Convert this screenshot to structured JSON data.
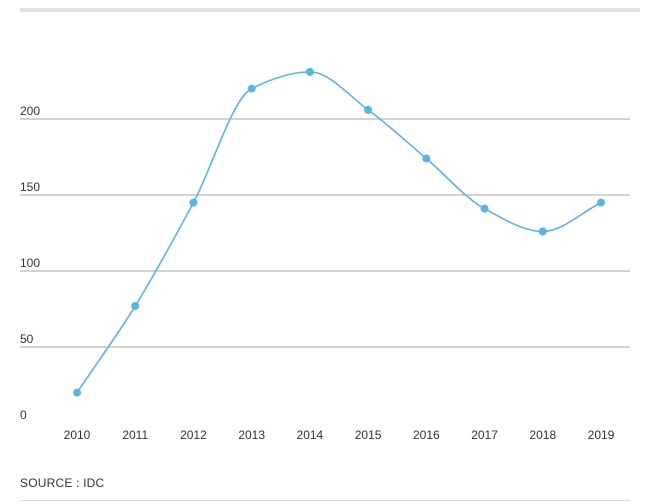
{
  "chart_data": {
    "type": "line",
    "x": [
      "2010",
      "2011",
      "2012",
      "2013",
      "2014",
      "2015",
      "2016",
      "2017",
      "2018",
      "2019"
    ],
    "series": [
      {
        "values": [
          20,
          77,
          145,
          220,
          231,
          206,
          174,
          141,
          126,
          145
        ]
      }
    ],
    "ylim": [
      0,
      250
    ],
    "yticks": [
      0,
      50,
      100,
      150,
      200
    ],
    "grid": true,
    "colors": {
      "line": "#5ab4e0",
      "grid": "#8a8a8a"
    }
  },
  "footer": {
    "source": "SOURCE : IDC"
  }
}
